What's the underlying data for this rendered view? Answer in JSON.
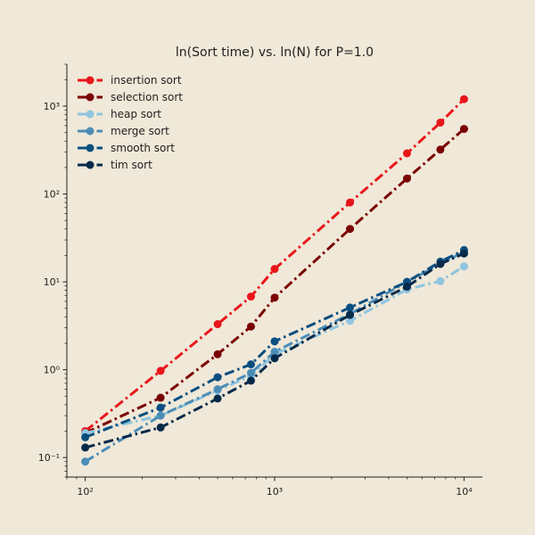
{
  "chart_data": {
    "type": "line",
    "title": "ln(Sort time) vs. ln(N) for P=1.0",
    "xlabel": "",
    "ylabel": "",
    "x_scale": "log",
    "y_scale": "log",
    "xlim": [
      80,
      12500
    ],
    "ylim": [
      0.06,
      3000
    ],
    "grid": false,
    "legend_position": "top-left",
    "x_ticks": [
      {
        "value": 100,
        "label": "10²"
      },
      {
        "value": 1000,
        "label": "10³"
      },
      {
        "value": 10000,
        "label": "10⁴"
      }
    ],
    "y_ticks": [
      {
        "value": 0.1,
        "label": "10⁻¹"
      },
      {
        "value": 1,
        "label": "10⁰"
      },
      {
        "value": 10,
        "label": "10¹"
      },
      {
        "value": 100,
        "label": "10²"
      },
      {
        "value": 1000,
        "label": "10³"
      }
    ],
    "x": [
      100,
      250,
      500,
      750,
      1000,
      2500,
      5000,
      7500,
      10000
    ],
    "series": [
      {
        "name": "insertion sort",
        "color": "#e8161a",
        "values": [
          0.2,
          0.97,
          3.3,
          6.8,
          14,
          80,
          290,
          650,
          1200
        ]
      },
      {
        "name": "selection sort",
        "color": "#7a0000",
        "values": [
          0.19,
          0.48,
          1.5,
          3.1,
          6.6,
          40,
          150,
          320,
          550
        ]
      },
      {
        "name": "heap sort",
        "color": "#8ec5df",
        "values": [
          0.19,
          0.3,
          0.58,
          0.85,
          1.5,
          3.6,
          8.2,
          10.2,
          15
        ]
      },
      {
        "name": "merge sort",
        "color": "#4b8db7",
        "values": [
          0.09,
          0.3,
          0.6,
          0.92,
          1.6,
          4.3,
          10,
          16,
          22
        ]
      },
      {
        "name": "smooth sort",
        "color": "#0a4f80",
        "values": [
          0.17,
          0.37,
          0.82,
          1.15,
          2.1,
          5.1,
          10,
          17,
          23
        ]
      },
      {
        "name": "tim sort",
        "color": "#062a4a",
        "values": [
          0.13,
          0.22,
          0.47,
          0.75,
          1.35,
          4.2,
          8.8,
          16,
          21
        ]
      }
    ]
  }
}
